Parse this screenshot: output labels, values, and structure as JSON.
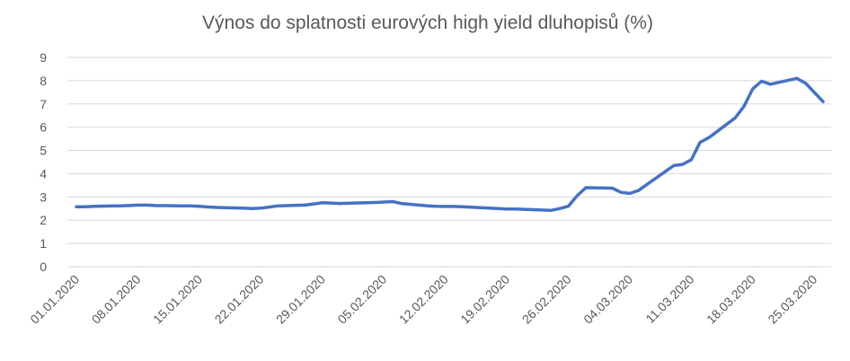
{
  "chart_data": {
    "type": "line",
    "title": "Výnos do splatnosti eurových high yield dluhopisů (%)",
    "x": [
      "01.01.2020",
      "02.01.2020",
      "03.01.2020",
      "06.01.2020",
      "07.01.2020",
      "08.01.2020",
      "09.01.2020",
      "10.01.2020",
      "13.01.2020",
      "14.01.2020",
      "15.01.2020",
      "16.01.2020",
      "17.01.2020",
      "20.01.2020",
      "21.01.2020",
      "22.01.2020",
      "23.01.2020",
      "24.01.2020",
      "27.01.2020",
      "28.01.2020",
      "29.01.2020",
      "30.01.2020",
      "31.01.2020",
      "03.02.2020",
      "04.02.2020",
      "05.02.2020",
      "06.02.2020",
      "07.02.2020",
      "10.02.2020",
      "11.02.2020",
      "12.02.2020",
      "13.02.2020",
      "14.02.2020",
      "17.02.2020",
      "18.02.2020",
      "19.02.2020",
      "20.02.2020",
      "21.02.2020",
      "24.02.2020",
      "25.02.2020",
      "26.02.2020",
      "27.02.2020",
      "28.02.2020",
      "02.03.2020",
      "03.03.2020",
      "04.03.2020",
      "05.03.2020",
      "06.03.2020",
      "09.03.2020",
      "10.03.2020",
      "11.03.2020",
      "12.03.2020",
      "13.03.2020",
      "16.03.2020",
      "17.03.2020",
      "18.03.2020",
      "19.03.2020",
      "20.03.2020",
      "23.03.2020",
      "24.03.2020",
      "25.03.2020",
      "26.03.2020"
    ],
    "series": [
      {
        "name": "Výnos",
        "color": "#4472c4",
        "values": [
          2.58,
          2.58,
          2.6,
          2.62,
          2.63,
          2.65,
          2.65,
          2.63,
          2.62,
          2.62,
          2.6,
          2.57,
          2.55,
          2.52,
          2.5,
          2.52,
          2.57,
          2.62,
          2.65,
          2.7,
          2.75,
          2.74,
          2.72,
          2.75,
          2.76,
          2.78,
          2.8,
          2.72,
          2.62,
          2.6,
          2.59,
          2.59,
          2.58,
          2.52,
          2.5,
          2.48,
          2.48,
          2.47,
          2.42,
          2.5,
          2.6,
          3.05,
          3.4,
          3.38,
          3.2,
          3.15,
          3.28,
          3.55,
          4.35,
          4.4,
          4.6,
          5.35,
          5.55,
          6.4,
          6.9,
          7.65,
          7.98,
          7.85,
          8.1,
          7.9,
          7.5,
          7.1
        ]
      }
    ],
    "xlim": [
      "01.01.2020",
      "26.03.2020"
    ],
    "xticks": [
      "01.01.2020",
      "08.01.2020",
      "15.01.2020",
      "22.01.2020",
      "29.01.2020",
      "05.02.2020",
      "12.02.2020",
      "19.02.2020",
      "26.02.2020",
      "04.03.2020",
      "11.03.2020",
      "18.03.2020",
      "25.03.2020"
    ],
    "ylim": [
      0,
      9
    ],
    "yticks": [
      0,
      1,
      2,
      3,
      4,
      5,
      6,
      7,
      8,
      9
    ],
    "grid": true
  }
}
